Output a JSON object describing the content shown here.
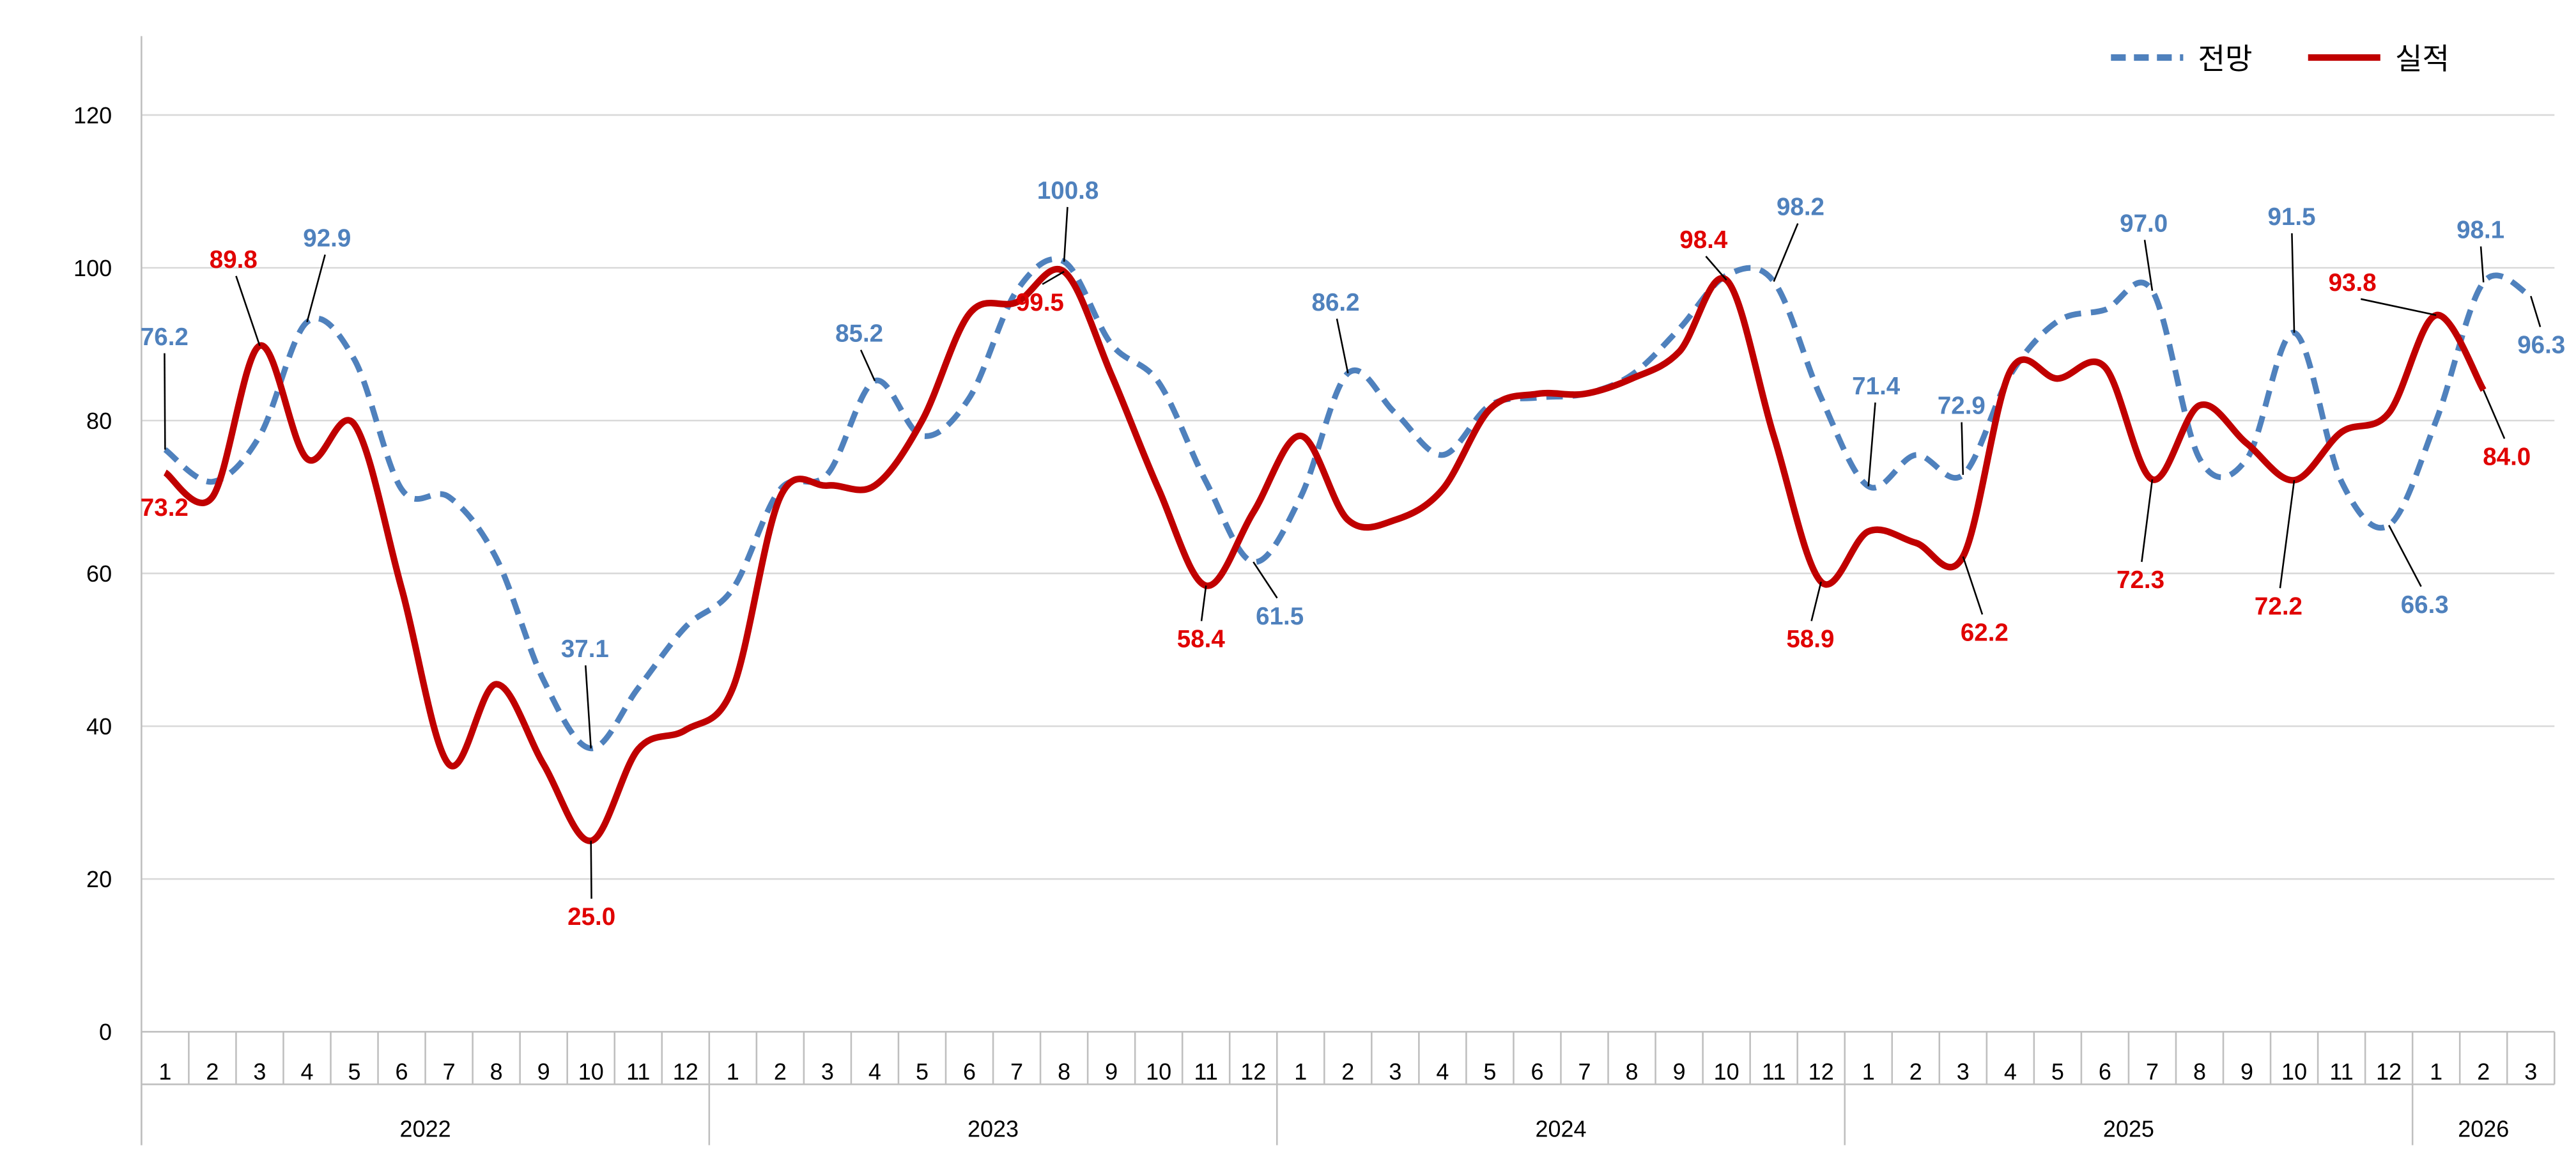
{
  "chart_data": {
    "type": "line",
    "title": "",
    "xlabel": "",
    "ylabel": "",
    "ylim": [
      0,
      120
    ],
    "yticks": [
      0,
      20,
      40,
      60,
      80,
      100,
      120
    ],
    "grid": true,
    "legend_position": "top-right",
    "years": [
      {
        "label": "2022",
        "months": 12
      },
      {
        "label": "2023",
        "months": 12
      },
      {
        "label": "2024",
        "months": 12
      },
      {
        "label": "2025",
        "months": 12
      },
      {
        "label": "2026",
        "months": 3
      }
    ],
    "x": [
      "1",
      "2",
      "3",
      "4",
      "5",
      "6",
      "7",
      "8",
      "9",
      "10",
      "11",
      "12",
      "1",
      "2",
      "3",
      "4",
      "5",
      "6",
      "7",
      "8",
      "9",
      "10",
      "11",
      "12",
      "1",
      "2",
      "3",
      "4",
      "5",
      "6",
      "7",
      "8",
      "9",
      "10",
      "11",
      "12",
      "1",
      "2",
      "3",
      "4",
      "5",
      "6",
      "7",
      "8",
      "9",
      "10",
      "11",
      "12",
      "1",
      "2",
      "3"
    ],
    "series": [
      {
        "name": "전망",
        "color": "#4f81bd",
        "style": "dashed",
        "values": [
          76.2,
          72,
          78,
          92.9,
          88,
          71,
          70,
          62,
          46,
          37.1,
          45,
          53,
          58,
          71,
          73,
          85.2,
          78,
          83,
          97,
          100.8,
          90,
          85,
          72,
          61.5,
          70,
          86.2,
          81,
          75.5,
          82,
          83,
          83.5,
          86,
          92,
          99,
          98.2,
          83,
          71.4,
          75.5,
          72.9,
          86,
          93,
          94.5,
          97.0,
          75,
          75,
          91.5,
          72,
          66.3,
          80,
          98.1,
          96.3
        ]
      },
      {
        "name": "실적",
        "color": "#c00000",
        "style": "solid",
        "values": [
          73.2,
          70,
          89.8,
          75,
          79.5,
          58,
          35,
          45.5,
          35,
          25.0,
          37,
          39.5,
          45,
          70,
          71.5,
          71.5,
          80,
          94,
          95.5,
          99.5,
          86,
          71,
          58.4,
          68,
          78,
          67,
          67,
          71,
          81.5,
          83.5,
          83.5,
          85.5,
          89,
          98.4,
          78,
          58.9,
          65.5,
          64,
          62.2,
          86.5,
          85.5,
          87,
          72.3,
          82,
          77,
          72.2,
          78.5,
          81,
          93.8,
          84.0,
          null
        ]
      }
    ],
    "annotations": [
      {
        "series": 0,
        "index": 0,
        "text": "76.2"
      },
      {
        "series": 0,
        "index": 3,
        "text": "92.9"
      },
      {
        "series": 0,
        "index": 9,
        "text": "37.1"
      },
      {
        "series": 0,
        "index": 15,
        "text": "85.2"
      },
      {
        "series": 0,
        "index": 19,
        "text": "100.8"
      },
      {
        "series": 0,
        "index": 23,
        "text": "61.5"
      },
      {
        "series": 0,
        "index": 25,
        "text": "86.2"
      },
      {
        "series": 0,
        "index": 34,
        "text": "98.2"
      },
      {
        "series": 0,
        "index": 36,
        "text": "71.4"
      },
      {
        "series": 0,
        "index": 38,
        "text": "72.9"
      },
      {
        "series": 0,
        "index": 42,
        "text": "97.0"
      },
      {
        "series": 0,
        "index": 45,
        "text": "91.5"
      },
      {
        "series": 0,
        "index": 47,
        "text": "66.3"
      },
      {
        "series": 0,
        "index": 49,
        "text": "98.1"
      },
      {
        "series": 0,
        "index": 50,
        "text": "96.3"
      },
      {
        "series": 1,
        "index": 0,
        "text": "73.2"
      },
      {
        "series": 1,
        "index": 2,
        "text": "89.8"
      },
      {
        "series": 1,
        "index": 9,
        "text": "25.0"
      },
      {
        "series": 1,
        "index": 19,
        "text": "99.5"
      },
      {
        "series": 1,
        "index": 22,
        "text": "58.4"
      },
      {
        "series": 1,
        "index": 33,
        "text": "98.4"
      },
      {
        "series": 1,
        "index": 35,
        "text": "58.9"
      },
      {
        "series": 1,
        "index": 38,
        "text": "62.2"
      },
      {
        "series": 1,
        "index": 42,
        "text": "72.3"
      },
      {
        "series": 1,
        "index": 45,
        "text": "72.2"
      },
      {
        "series": 1,
        "index": 48,
        "text": "93.8"
      },
      {
        "series": 1,
        "index": 49,
        "text": "84.0"
      }
    ]
  }
}
